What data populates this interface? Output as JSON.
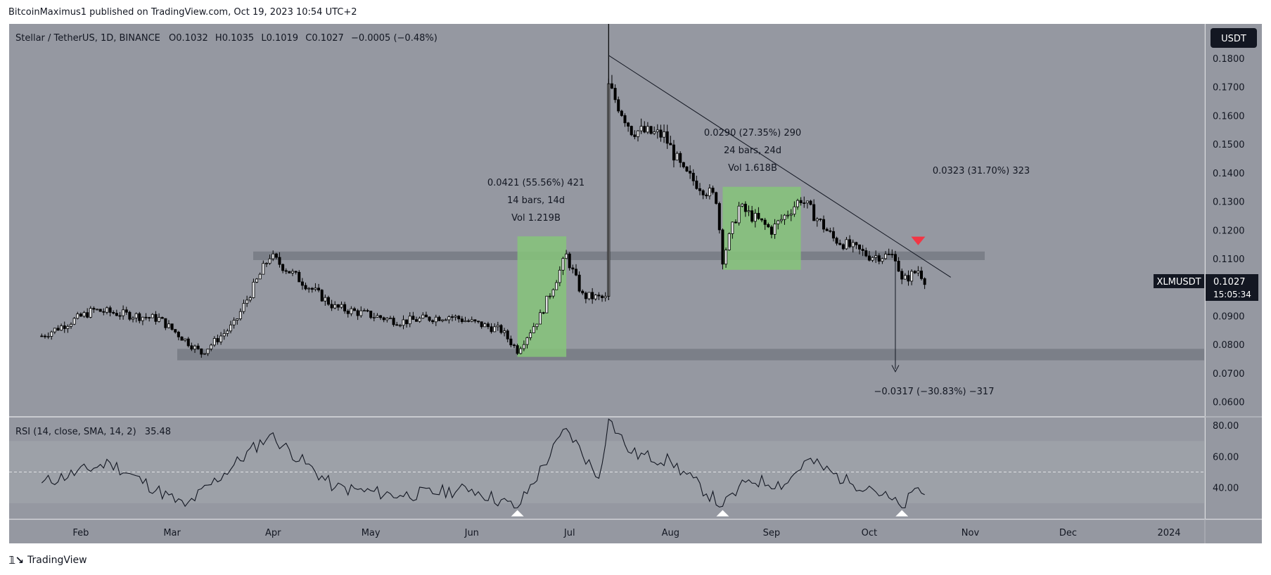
{
  "publisher": "BitcoinMaximus1 published on TradingView.com, Oct 19, 2023 10:54 UTC+2",
  "footer_brand": "TradingView",
  "currency_badge": "USDT",
  "legend": {
    "symbol": "Stellar / TetherUS, 1D, BINANCE",
    "o_label": "O",
    "o": "0.1032",
    "h_label": "H",
    "h": "0.1035",
    "l_label": "L",
    "l": "0.1019",
    "c_label": "C",
    "c": "0.1027",
    "change": "−0.0005 (−0.48%)"
  },
  "price_tag": {
    "ticker": "XLMUSDT",
    "price": "0.1027",
    "countdown": "15:05:34"
  },
  "rsi_legend": {
    "label": "RSI (14, close, SMA, 14, 2)",
    "value": "35.48"
  },
  "annotations": {
    "box1": {
      "line1": "0.0421 (55.56%) 421",
      "line2": "14 bars, 14d",
      "line3": "Vol 1.219B"
    },
    "box2": {
      "line1": "0.0290 (27.35%) 290",
      "line2": "24 bars, 24d",
      "line3": "Vol 1.618B"
    },
    "up_projection": "0.0323 (31.70%) 323",
    "down_projection": "−0.0317 (−30.83%) −317"
  },
  "colors": {
    "chart_bg": "#9598a1",
    "candle": "#000000",
    "green_box": "#86c47a",
    "support": "#737780",
    "red_marker": "#f23645",
    "white_marker": "#ffffff"
  },
  "chart_data": [
    {
      "type": "candlestick",
      "title": "Stellar / TetherUS, 1D, BINANCE",
      "x": [
        "2023-01-20",
        "2023-02-05",
        "2023-02-25",
        "2023-03-10",
        "2023-03-20",
        "2023-03-31",
        "2023-04-20",
        "2023-05-10",
        "2023-05-25",
        "2023-06-10",
        "2023-06-15",
        "2023-06-22",
        "2023-06-30",
        "2023-07-05",
        "2023-07-12",
        "2023-07-13",
        "2023-07-20",
        "2023-07-30",
        "2023-08-05",
        "2023-08-15",
        "2023-08-17",
        "2023-08-22",
        "2023-09-01",
        "2023-09-10",
        "2023-09-20",
        "2023-10-01",
        "2023-10-09",
        "2023-10-11",
        "2023-10-16",
        "2023-10-18"
      ],
      "close": [
        0.083,
        0.092,
        0.089,
        0.077,
        0.087,
        0.111,
        0.093,
        0.088,
        0.09,
        0.085,
        0.078,
        0.09,
        0.111,
        0.097,
        0.096,
        0.17,
        0.155,
        0.153,
        0.14,
        0.131,
        0.11,
        0.128,
        0.12,
        0.131,
        0.117,
        0.111,
        0.111,
        0.102,
        0.106,
        0.1027
      ],
      "ylim": [
        0.055,
        0.192
      ],
      "yticks": [
        "0.1800",
        "0.1700",
        "0.1600",
        "0.1500",
        "0.1400",
        "0.1300",
        "0.1200",
        "0.1100",
        "0.1000",
        "0.0900",
        "0.0800",
        "0.0700",
        "0.0600"
      ],
      "xtick_labels": [
        "Feb",
        "Mar",
        "Apr",
        "May",
        "Jun",
        "Jul",
        "Aug",
        "Sep",
        "Oct",
        "Nov",
        "Dec",
        "2024"
      ],
      "support_zones": [
        [
          0.1095,
          0.1125
        ],
        [
          0.0745,
          0.0785
        ]
      ],
      "highlight_ranges": [
        {
          "from": "2023-06-15",
          "to": "2023-06-30",
          "low": 0.0757,
          "high": 0.1178
        },
        {
          "from": "2023-08-17",
          "to": "2023-09-10",
          "low": 0.1061,
          "high": 0.1351
        }
      ]
    },
    {
      "type": "line",
      "title": "RSI (14, close, SMA, 14, 2)",
      "x": [
        "2023-01-20",
        "2023-02-10",
        "2023-03-05",
        "2023-03-31",
        "2023-04-20",
        "2023-05-10",
        "2023-06-01",
        "2023-06-15",
        "2023-06-30",
        "2023-07-10",
        "2023-07-13",
        "2023-07-20",
        "2023-08-01",
        "2023-08-17",
        "2023-08-25",
        "2023-09-05",
        "2023-09-12",
        "2023-09-25",
        "2023-10-01",
        "2023-10-11",
        "2023-10-16",
        "2023-10-18"
      ],
      "values": [
        43,
        56,
        28,
        74,
        40,
        35,
        39,
        27,
        78,
        46,
        84,
        62,
        57,
        28,
        45,
        42,
        58,
        43,
        41,
        27,
        40,
        35.48
      ],
      "ylim": [
        20,
        85
      ],
      "yticks": [
        "80.00",
        "60.00",
        "40.00"
      ],
      "bands": [
        30,
        50,
        70
      ]
    }
  ]
}
